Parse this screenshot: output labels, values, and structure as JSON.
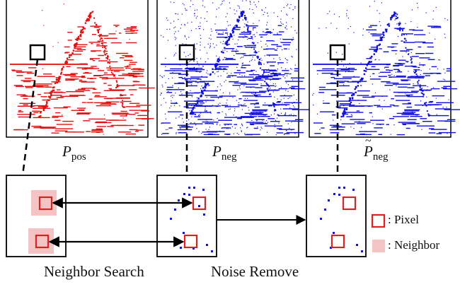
{
  "panels": {
    "pos": {
      "symbol": "P",
      "subscript": "pos",
      "color": "#e01010"
    },
    "neg": {
      "symbol": "P",
      "subscript": "neg",
      "color": "#1010d8"
    },
    "neg_denoised": {
      "symbol": "P",
      "subscript": "neg",
      "accent": "~",
      "color": "#1010d8"
    }
  },
  "steps": {
    "neighbor_search": "Neighbor Search",
    "noise_remove": "Noise Remove"
  },
  "legend": {
    "pixel": ": Pixel",
    "neighbor": ": Neighbor"
  },
  "colors": {
    "pixel_box": "#e02020",
    "neighbor_fill": "#f4c4c4",
    "dot": "#1010d8",
    "line": "#000000"
  }
}
